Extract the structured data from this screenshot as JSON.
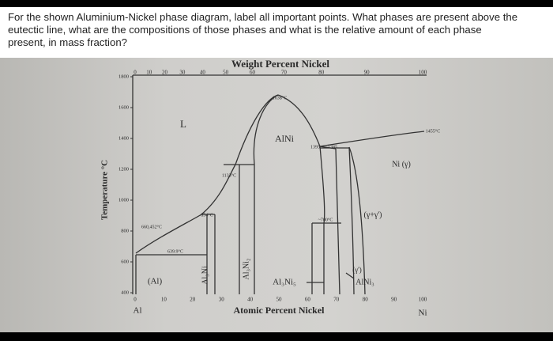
{
  "question": "For the shown Aluminium-Nickel phase diagram, label all important points. What phases are present above the eutectic line, what are the compositions of those phases and what is the relative amount of each phase present, in mass fraction?",
  "diagram": {
    "top_axis_title": "Weight Percent Nickel",
    "top_ticks": [
      0,
      10,
      20,
      30,
      40,
      50,
      60,
      70,
      80,
      90,
      100
    ],
    "bottom_axis_title": "Atomic Percent Nickel",
    "bottom_ticks": [
      0,
      10,
      20,
      30,
      40,
      50,
      60,
      70,
      80,
      90,
      100
    ],
    "y_axis_title": "Temperature °C",
    "y_ticks": [
      400,
      600,
      800,
      1000,
      1200,
      1400,
      1600,
      1800
    ],
    "end_labels": [
      "Al",
      "Ni"
    ],
    "labels": [
      "L",
      "AlNi",
      "1638°C",
      "1455°C",
      "Ni (γ)",
      "1133°C",
      "854°C",
      "660,452°C",
      "639.9°C",
      "~700°C",
      "1395",
      "1385",
      "(γ+γ')",
      "(γ')",
      "AlNi₃",
      "(Al)",
      "Al₃Ni",
      "Al₃Ni₂",
      "Al₃Ni₅"
    ]
  }
}
